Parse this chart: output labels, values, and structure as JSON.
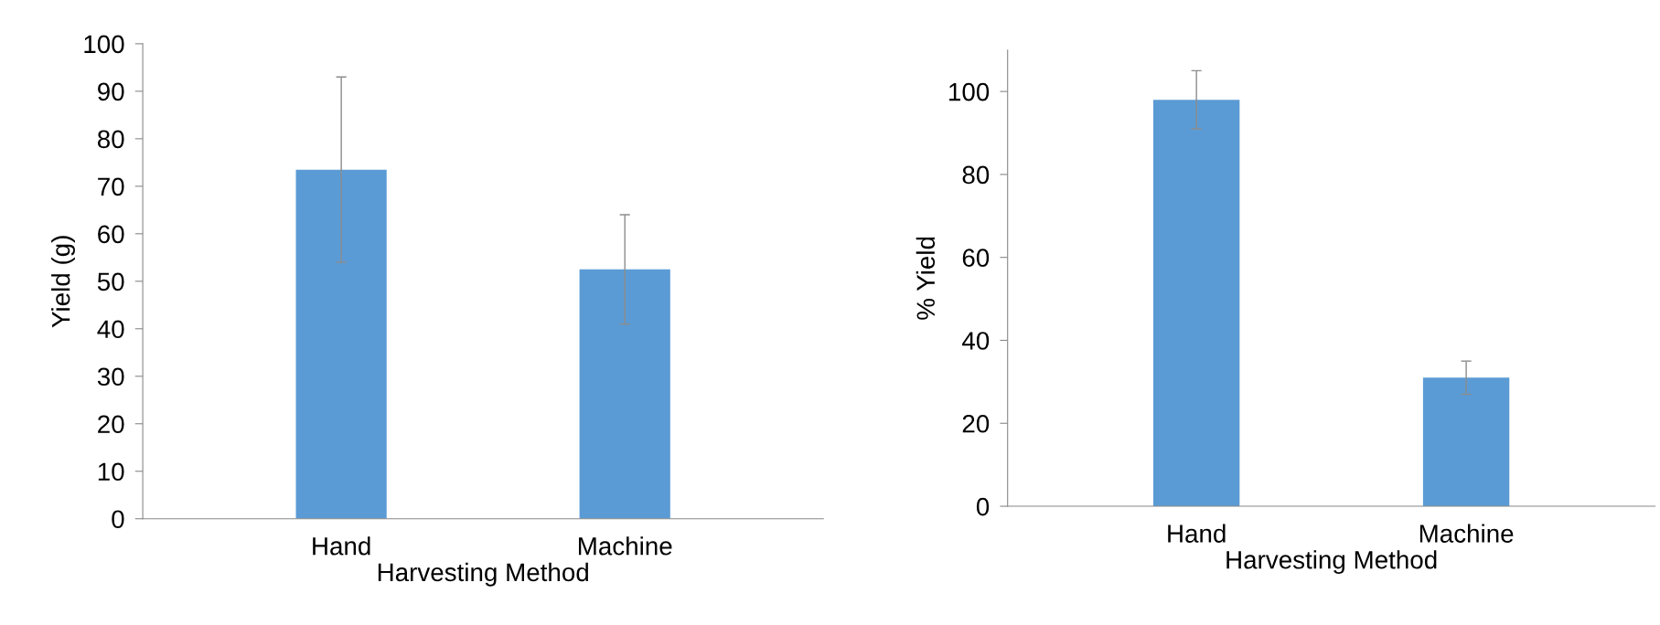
{
  "chart_data": [
    {
      "type": "bar",
      "categories": [
        "Hand",
        "Machine"
      ],
      "values": [
        73.5,
        52.5
      ],
      "errors": [
        [
          54,
          93
        ],
        [
          41,
          64
        ]
      ],
      "color": "#5b9bd5",
      "xlabel": "Harvesting Method",
      "ylabel": "Yield (g)",
      "ylim": [
        0,
        100
      ],
      "yticks": [
        0,
        10,
        20,
        30,
        40,
        50,
        60,
        70,
        80,
        90,
        100
      ],
      "grid": false,
      "legend": false
    },
    {
      "type": "bar",
      "categories": [
        "Hand",
        "Machine"
      ],
      "values": [
        98,
        31
      ],
      "errors": [
        [
          91,
          105
        ],
        [
          27,
          35
        ]
      ],
      "color": "#5b9bd5",
      "xlabel": "Harvesting Method",
      "ylabel": "% Yield",
      "ylim": [
        0,
        110
      ],
      "yticks": [
        0,
        20,
        40,
        60,
        80,
        100
      ],
      "grid": false,
      "legend": false
    }
  ]
}
